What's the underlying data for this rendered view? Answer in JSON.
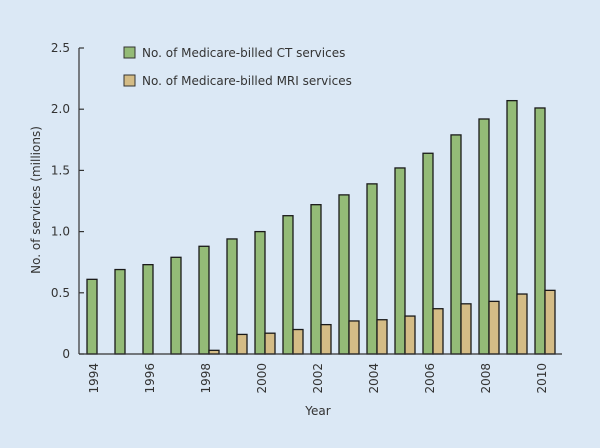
{
  "chart_data": {
    "type": "bar",
    "title": "",
    "xlabel": "Year",
    "ylabel": "No. of services (millions)",
    "ylim": [
      0,
      2.5
    ],
    "yticks": [
      0,
      0.5,
      1.0,
      1.5,
      2.0,
      2.5
    ],
    "ytick_labels": [
      "0",
      "0.5",
      "1.0",
      "1.5",
      "2.0",
      "2.5"
    ],
    "categories": [
      "1994",
      "1995",
      "1996",
      "1997",
      "1998",
      "1999",
      "2000",
      "2001",
      "2002",
      "2003",
      "2004",
      "2005",
      "2006",
      "2007",
      "2008",
      "2009",
      "2010"
    ],
    "xtick_labels": [
      "1994",
      "",
      "1996",
      "",
      "1998",
      "",
      "2000",
      "",
      "2002",
      "",
      "2004",
      "",
      "2006",
      "",
      "2008",
      "",
      "2010"
    ],
    "legend_position": "top-left",
    "grid": false,
    "series": [
      {
        "name": "No. of Medicare-billed CT services",
        "color": "#94bb77",
        "values": [
          0.61,
          0.69,
          0.73,
          0.79,
          0.88,
          0.94,
          1.0,
          1.13,
          1.22,
          1.3,
          1.39,
          1.52,
          1.64,
          1.79,
          1.92,
          2.07,
          2.01
        ]
      },
      {
        "name": "No. of Medicare-billed MRI services",
        "color": "#d4bc86",
        "values": [
          0,
          0,
          0,
          0,
          0.03,
          0.16,
          0.17,
          0.2,
          0.24,
          0.27,
          0.28,
          0.31,
          0.37,
          0.41,
          0.43,
          0.49,
          0.52
        ]
      }
    ]
  }
}
